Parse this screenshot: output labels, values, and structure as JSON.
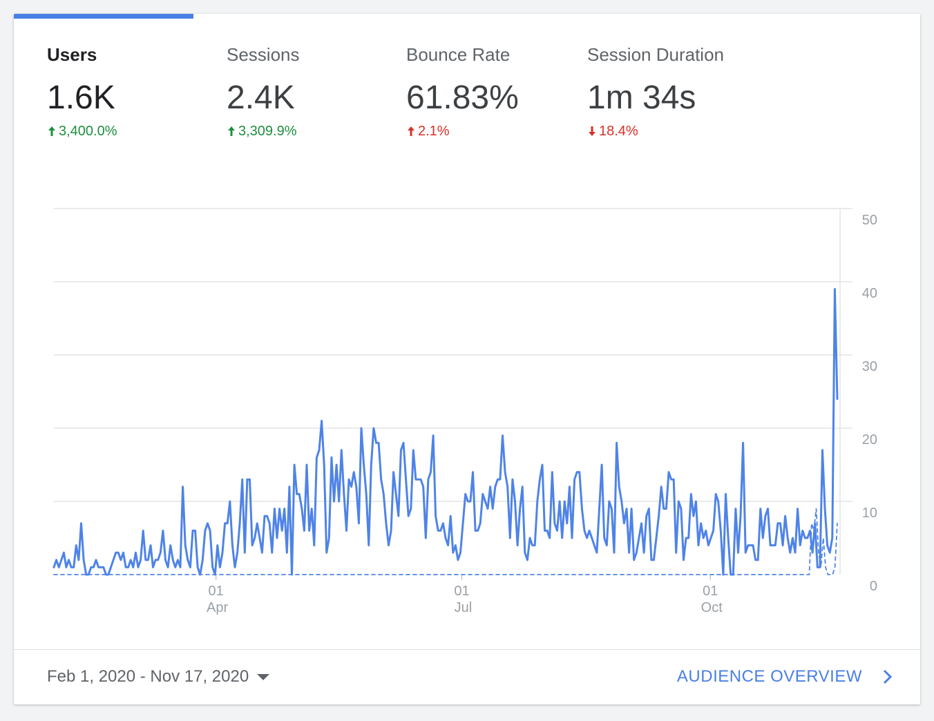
{
  "metrics": [
    {
      "label": "Users",
      "value": "1.6K",
      "change": "3,400.0%",
      "direction": "up",
      "active": true
    },
    {
      "label": "Sessions",
      "value": "2.4K",
      "change": "3,309.9%",
      "direction": "up",
      "active": false
    },
    {
      "label": "Bounce Rate",
      "value": "61.83%",
      "change": "2.1%",
      "direction": "up-bad",
      "active": false
    },
    {
      "label": "Session Duration",
      "value": "1m 34s",
      "change": "18.4%",
      "direction": "down",
      "active": false
    }
  ],
  "colors": {
    "accent": "#4a7fe6",
    "positive": "#1e8e3e",
    "negative": "#d93025",
    "line": "#4e83e8"
  },
  "footer": {
    "date_range": "Feb 1, 2020 - Nov 17, 2020",
    "link_label": "AUDIENCE OVERVIEW",
    "caret_icon": "caret-down-icon",
    "link_icon": "chevron-right-icon"
  },
  "chart_data": {
    "type": "line",
    "title": "",
    "xlabel": "",
    "ylabel": "",
    "ylim": [
      0,
      50
    ],
    "yticks": [
      0,
      10,
      20,
      30,
      40,
      50
    ],
    "y_axis_side": "right",
    "grid": true,
    "legend": "none",
    "x_start": "2020-02-01",
    "x_end": "2020-11-17",
    "xticks": [
      {
        "date": "2020-04-01",
        "day": "01",
        "month": "Apr"
      },
      {
        "date": "2020-07-01",
        "day": "01",
        "month": "Jul"
      },
      {
        "date": "2020-10-01",
        "day": "01",
        "month": "Oct"
      }
    ],
    "series": [
      {
        "style": "solid",
        "values": [
          1,
          2,
          1,
          2,
          3,
          1,
          2,
          1,
          1,
          4,
          2,
          7,
          2,
          0,
          0,
          1,
          1,
          2,
          1,
          1,
          1,
          0,
          0,
          1,
          2,
          3,
          3,
          2,
          3,
          1,
          1,
          2,
          1,
          3,
          1,
          2,
          6,
          2,
          2,
          4,
          1,
          2,
          2,
          3,
          6,
          2,
          1,
          4,
          2,
          1,
          2,
          1,
          12,
          4,
          2,
          1,
          6,
          6,
          1,
          0,
          2,
          6,
          7,
          6,
          1,
          0,
          4,
          1,
          3,
          7,
          7,
          10,
          4,
          1,
          3,
          7,
          13,
          3,
          13,
          13,
          4,
          5,
          7,
          5,
          3,
          8,
          8,
          7,
          3,
          9,
          5,
          9,
          6,
          9,
          3,
          12,
          0,
          15,
          11,
          11,
          9,
          6,
          15,
          6,
          9,
          4,
          16,
          17,
          21,
          15,
          3,
          5,
          16,
          10,
          15,
          10,
          17,
          11,
          6,
          13,
          12,
          14,
          12,
          7,
          20,
          15,
          11,
          4,
          15,
          20,
          18,
          18,
          13,
          11,
          7,
          4,
          6,
          14,
          11,
          8,
          17,
          18,
          13,
          8,
          9,
          17,
          13,
          13,
          13,
          12,
          5,
          13,
          14,
          19,
          8,
          6,
          6,
          7,
          5,
          4,
          8,
          3,
          4,
          2,
          3,
          7,
          11,
          10,
          10,
          14,
          6,
          6,
          7,
          11,
          10,
          9,
          12,
          9,
          12,
          13,
          13,
          19,
          14,
          12,
          5,
          13,
          10,
          4,
          9,
          12,
          3,
          2,
          5,
          4,
          4,
          10,
          13,
          15,
          6,
          6,
          5,
          14,
          7,
          6,
          10,
          5,
          10,
          7,
          12,
          5,
          13,
          14,
          14,
          9,
          6,
          5,
          6,
          5,
          4,
          3,
          9,
          15,
          5,
          4,
          10,
          9,
          3,
          18,
          12,
          10,
          7,
          9,
          3,
          9,
          2,
          3,
          5,
          7,
          3,
          8,
          9,
          2,
          2,
          5,
          8,
          12,
          9,
          9,
          14,
          13,
          13,
          3,
          10,
          9,
          2,
          5,
          5,
          11,
          8,
          10,
          4,
          7,
          5,
          6,
          4,
          5,
          6,
          11,
          10,
          6,
          0,
          11,
          5,
          0,
          0,
          9,
          3,
          8,
          18,
          3,
          4,
          4,
          4,
          2,
          2,
          9,
          5,
          8,
          9,
          4,
          4,
          4,
          7,
          7,
          4,
          8,
          5,
          3,
          5,
          3,
          9,
          4,
          6,
          5,
          5,
          6,
          3,
          7,
          1,
          1,
          17,
          9,
          4,
          3,
          5,
          39,
          24
        ]
      },
      {
        "style": "dashed",
        "values": [
          0,
          0,
          0,
          0,
          0,
          0,
          0,
          0,
          0,
          0,
          0,
          0,
          0,
          0,
          0,
          0,
          0,
          0,
          0,
          0,
          0,
          0,
          0,
          0,
          0,
          0,
          0,
          0,
          0,
          0,
          0,
          0,
          0,
          0,
          0,
          0,
          0,
          0,
          0,
          0,
          0,
          0,
          0,
          0,
          0,
          0,
          0,
          0,
          0,
          0,
          0,
          0,
          0,
          0,
          0,
          0,
          0,
          0,
          0,
          0,
          0,
          0,
          0,
          0,
          0,
          0,
          0,
          0,
          0,
          0,
          0,
          0,
          0,
          0,
          0,
          0,
          0,
          0,
          0,
          0,
          0,
          0,
          0,
          0,
          0,
          0,
          0,
          0,
          0,
          0,
          0,
          0,
          0,
          0,
          0,
          0,
          0,
          0,
          0,
          0,
          0,
          0,
          0,
          0,
          0,
          0,
          0,
          0,
          0,
          0,
          0,
          0,
          0,
          0,
          0,
          0,
          0,
          0,
          0,
          0,
          0,
          0,
          0,
          0,
          0,
          0,
          0,
          0,
          0,
          0,
          0,
          0,
          0,
          0,
          0,
          0,
          0,
          0,
          0,
          0,
          0,
          0,
          0,
          0,
          0,
          0,
          0,
          0,
          0,
          0,
          0,
          0,
          0,
          0,
          0,
          0,
          0,
          0,
          0,
          0,
          0,
          0,
          0,
          0,
          0,
          0,
          0,
          0,
          0,
          0,
          0,
          0,
          0,
          0,
          0,
          0,
          0,
          0,
          0,
          0,
          0,
          0,
          0,
          0,
          0,
          0,
          0,
          0,
          0,
          0,
          0,
          0,
          0,
          0,
          0,
          0,
          0,
          0,
          0,
          0,
          0,
          0,
          0,
          0,
          0,
          0,
          0,
          0,
          0,
          0,
          0,
          0,
          0,
          0,
          0,
          0,
          0,
          0,
          0,
          0,
          0,
          0,
          0,
          0,
          0,
          0,
          0,
          0,
          0,
          0,
          0,
          0,
          0,
          0,
          0,
          0,
          0,
          0,
          0,
          0,
          0,
          0,
          0,
          0,
          0,
          0,
          0,
          0,
          0,
          0,
          0,
          0,
          0,
          0,
          0,
          0,
          0,
          0,
          0,
          0,
          0,
          0,
          0,
          0,
          0,
          0,
          0,
          0,
          0,
          0,
          0,
          0,
          0,
          0,
          0,
          0,
          0,
          0,
          0,
          0,
          0,
          0,
          0,
          0,
          0,
          0,
          0,
          0,
          0,
          0,
          0,
          0,
          0,
          0,
          0,
          0,
          0,
          0,
          0,
          0,
          0,
          0,
          0,
          0,
          0,
          0,
          0,
          0,
          0,
          0,
          0,
          0,
          0,
          0,
          0,
          0,
          0,
          0,
          0,
          0,
          0,
          0,
          0,
          0,
          7,
          6,
          9,
          3,
          1,
          5,
          1,
          0,
          0,
          0,
          1,
          7
        ]
      }
    ]
  }
}
